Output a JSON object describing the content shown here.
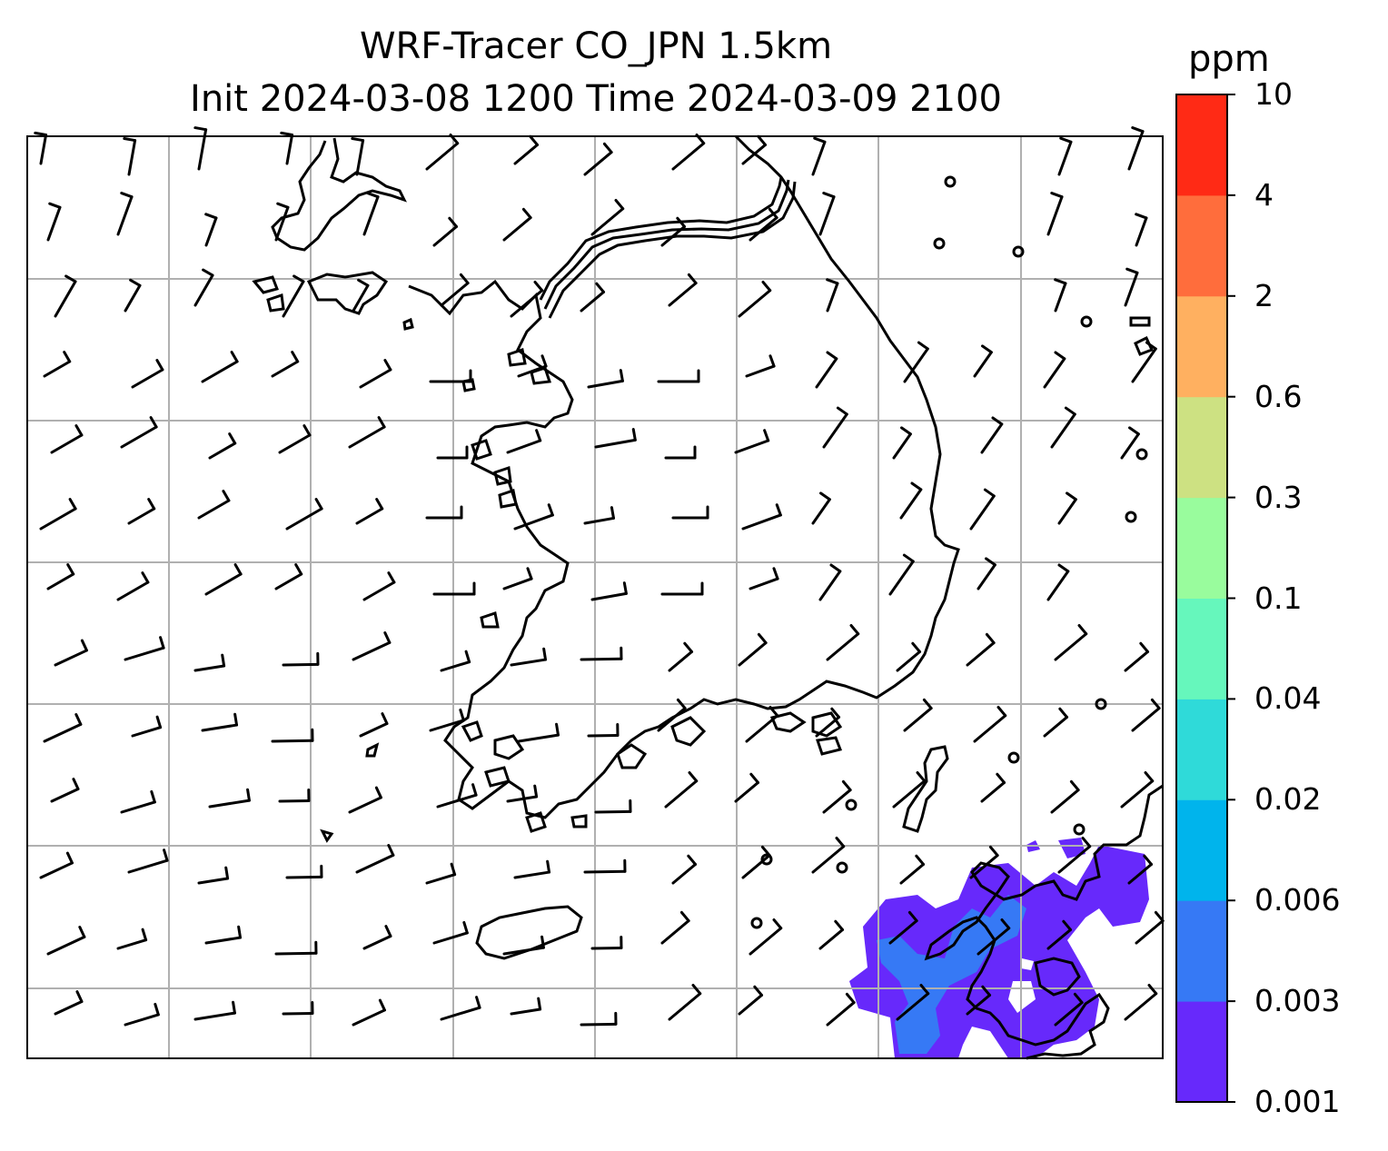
{
  "title": {
    "line1": "WRF-Tracer CO_JPN 1.5km",
    "line2": "Init 2024-03-08 1200 Time 2024-03-09 2100"
  },
  "colorbar": {
    "unit": "ppm",
    "levels": [
      "0.001",
      "0.003",
      "0.006",
      "0.02",
      "0.04",
      "0.1",
      "0.3",
      "0.6",
      "2",
      "4",
      "10"
    ],
    "colors": [
      "#6729fb",
      "#3679f5",
      "#00b4ec",
      "#2fdad9",
      "#66f7bc",
      "#99fc9d",
      "#cde182",
      "#ffb060",
      "#ff6d3c",
      "#ff2a15"
    ]
  },
  "map": {
    "gridlines": true,
    "wind_barbs": true,
    "coastlines": true,
    "tracer_contour_region": "bottom-right"
  }
}
